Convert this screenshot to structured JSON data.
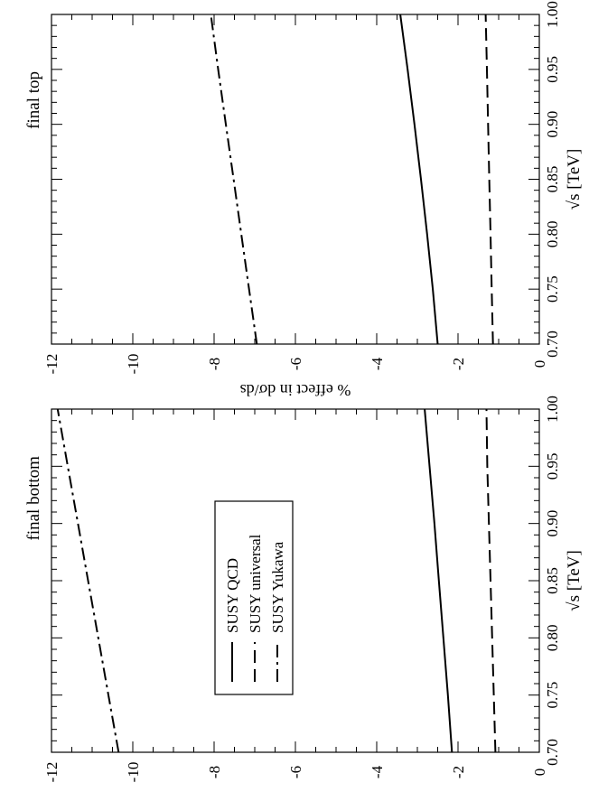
{
  "chart_data": [
    {
      "type": "line",
      "title": "final top",
      "xlabel": "√s [TeV]",
      "ylabel": "% effect in dσ/ds",
      "xlim": [
        0.7,
        1.0
      ],
      "ylim": [
        -12,
        0
      ],
      "xticks": [
        "0.70",
        "0.75",
        "0.80",
        "0.85",
        "0.90",
        "0.95",
        "1.00"
      ],
      "yticks": [
        "0",
        "-2",
        "-4",
        "-6",
        "-8",
        "-10",
        "-12"
      ],
      "grid": false,
      "series": [
        {
          "name": "SUSY QCD",
          "style": "solid",
          "x": [
            0.7,
            0.75,
            0.8,
            0.85,
            0.9,
            0.95,
            1.0
          ],
          "y": [
            -2.5,
            -2.62,
            -2.76,
            -2.91,
            -3.07,
            -3.24,
            -3.42
          ]
        },
        {
          "name": "SUSY universal",
          "style": "dashed",
          "x": [
            0.7,
            0.75,
            0.8,
            0.85,
            0.9,
            0.95,
            1.0
          ],
          "y": [
            -1.14,
            -1.17,
            -1.2,
            -1.23,
            -1.26,
            -1.29,
            -1.32
          ]
        },
        {
          "name": "SUSY Yukawa",
          "style": "dashdot",
          "x": [
            0.7,
            0.75,
            0.8,
            0.85,
            0.9,
            0.95,
            1.0
          ],
          "y": [
            -6.95,
            -7.14,
            -7.33,
            -7.52,
            -7.71,
            -7.9,
            -8.08
          ]
        }
      ]
    },
    {
      "type": "line",
      "title": "final bottom",
      "xlabel": "√s [TeV]",
      "ylabel": "% effect in dσ/ds",
      "xlim": [
        0.7,
        1.0
      ],
      "ylim": [
        -12,
        0
      ],
      "xticks": [
        "0.70",
        "0.75",
        "0.80",
        "0.85",
        "0.90",
        "0.95",
        "1.00"
      ],
      "yticks": [
        "0",
        "-2",
        "-4",
        "-6",
        "-8",
        "-10",
        "-12"
      ],
      "grid": false,
      "legend": {
        "placement": "center",
        "entries": [
          "SUSY QCD",
          "SUSY universal",
          "SUSY Yukawa"
        ]
      },
      "series": [
        {
          "name": "SUSY QCD",
          "style": "solid",
          "x": [
            0.7,
            0.75,
            0.8,
            0.85,
            0.9,
            0.95,
            1.0
          ],
          "y": [
            -2.15,
            -2.25,
            -2.36,
            -2.47,
            -2.58,
            -2.7,
            -2.82
          ]
        },
        {
          "name": "SUSY universal",
          "style": "dashed",
          "x": [
            0.7,
            0.75,
            0.8,
            0.85,
            0.9,
            0.95,
            1.0
          ],
          "y": [
            -1.08,
            -1.12,
            -1.16,
            -1.2,
            -1.24,
            -1.28,
            -1.3
          ]
        },
        {
          "name": "SUSY Yukawa",
          "style": "dashdot",
          "x": [
            0.7,
            0.75,
            0.8,
            0.85,
            0.9,
            0.95,
            1.0
          ],
          "y": [
            -10.35,
            -10.6,
            -10.85,
            -11.1,
            -11.35,
            -11.6,
            -11.85
          ]
        }
      ]
    }
  ]
}
